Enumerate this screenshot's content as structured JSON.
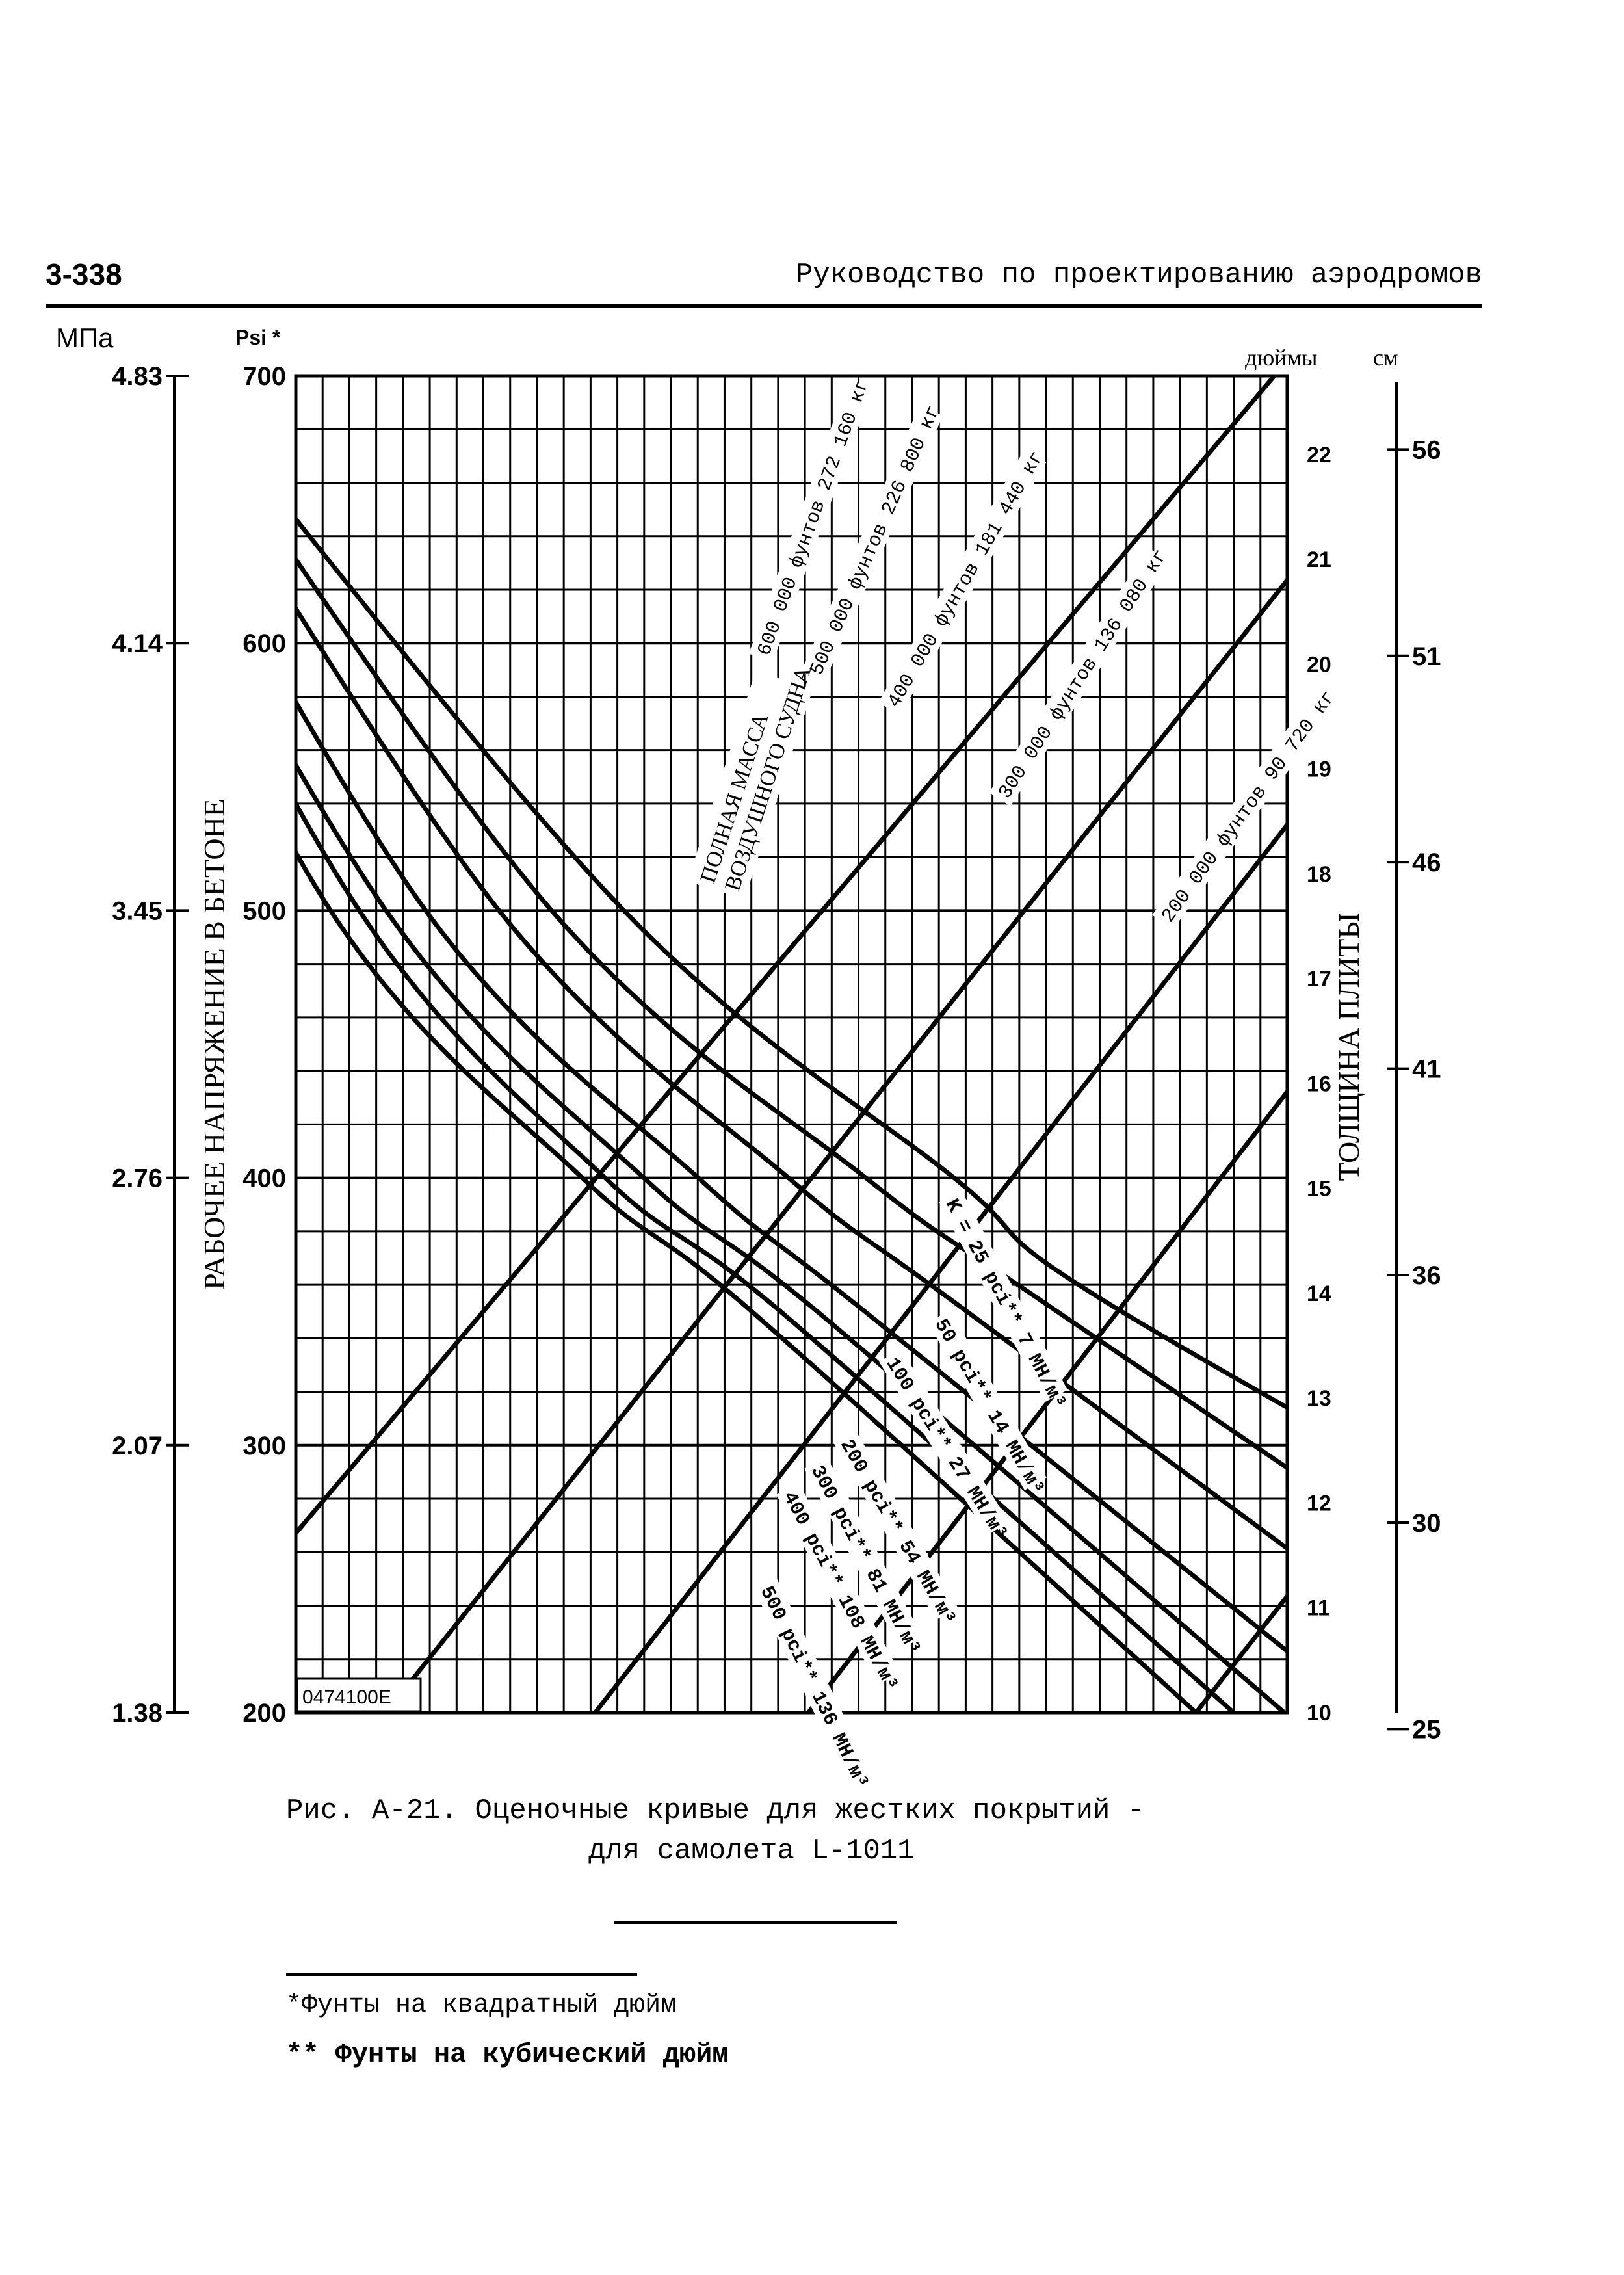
{
  "header": {
    "page_number": "3-338",
    "title": "Руководство по проектированию аэродромов"
  },
  "caption": {
    "line1": "Рис. А-21.  Оценочные кривые для жестких покрытий -",
    "line2": "для самолета L-1011"
  },
  "footnotes": [
    "*Фунты на квадратный дюйм",
    "** Фунты на кубический дюйм"
  ],
  "chart_data": {
    "type": "line",
    "figure_id": "0474100E",
    "left_axis_mpa": {
      "label": "МПа",
      "ticks": [
        {
          "value": 200,
          "label": "1.38"
        },
        {
          "value": 300,
          "label": "2.07"
        },
        {
          "value": 400,
          "label": "2.76"
        },
        {
          "value": 500,
          "label": "3.45"
        },
        {
          "value": 600,
          "label": "4.14"
        },
        {
          "value": 700,
          "label": "4.83"
        }
      ]
    },
    "left_axis_psi": {
      "label": "Psi *",
      "title": "РАБОЧЕЕ НАПРЯЖЕНИЕ В БЕТОНЕ",
      "range": [
        200,
        700
      ],
      "ticks": [
        "200",
        "300",
        "400",
        "500",
        "600",
        "700"
      ]
    },
    "right_axis_inches": {
      "label": "дюймы",
      "title": "ТОЛЩИНА ПЛИТЫ",
      "range": [
        10,
        22.75
      ],
      "ticks": [
        "10",
        "11",
        "12",
        "13",
        "14",
        "15",
        "16",
        "17",
        "18",
        "19",
        "20",
        "21",
        "22"
      ]
    },
    "right_axis_cm": {
      "label": "см",
      "ticks": [
        {
          "value": 25,
          "label": "25"
        },
        {
          "value": 30,
          "label": "30"
        },
        {
          "value": 36,
          "label": "36"
        },
        {
          "value": 41,
          "label": "41"
        },
        {
          "value": 46,
          "label": "46"
        },
        {
          "value": 51,
          "label": "51"
        },
        {
          "value": 56,
          "label": "56"
        }
      ]
    },
    "grid": true,
    "mass_group_label": [
      "ПОЛНАЯ МАССА",
      "ВОЗДУШНОГО СУДНА"
    ],
    "mass_series": [
      {
        "name": "600 000 фунтов  272 160 кг",
        "x": [
          -15.3,
          98.7
        ],
        "y": [
          200,
          700
        ]
      },
      {
        "name": "500 000 фунтов  226 800 кг",
        "x": [
          9.1,
          116.4
        ],
        "y": [
          200,
          700
        ]
      },
      {
        "name": "400 000 фунтов  181 440 кг",
        "x": [
          30.2,
          135.3
        ],
        "y": [
          200,
          700
        ]
      },
      {
        "name": "300 000 фунтов  136 080 кг",
        "x": [
          51.7,
          155.7
        ],
        "y": [
          200,
          700
        ]
      },
      {
        "name": "200 000 фунтов  90 720 кг",
        "x": [
          90.8,
          175.3
        ],
        "y": [
          200,
          600
        ]
      }
    ],
    "k_series": [
      {
        "name": "K = 25 pci** 7 МН/м³",
        "x": [
          -11.6,
          33.1,
          66.4,
          83.3,
          155.2
        ],
        "y": [
          700,
          500,
          400,
          350,
          200
        ]
      },
      {
        "name": "50 pci** 14 МН/м³",
        "x": [
          -12.6,
          25.8,
          57.5,
          76.8,
          136.4
        ],
        "y": [
          700,
          500,
          400,
          350,
          200
        ]
      },
      {
        "name": "100 pci** 27 МН/м³",
        "x": [
          -14.6,
          20.5,
          49.7,
          67.7,
          122.4
        ],
        "y": [
          700,
          500,
          400,
          350,
          200
        ]
      },
      {
        "name": "200 pci** 54 МН/м³",
        "x": [
          -18.3,
          13.1,
          40.6,
          57.4,
          107.7
        ],
        "y": [
          700,
          500,
          400,
          350,
          200
        ]
      },
      {
        "name": "300 pci** 81 МН/м³",
        "x": [
          -21.5,
          9.1,
          35.1,
          52.6,
          99.7
        ],
        "y": [
          700,
          500,
          400,
          350,
          200
        ]
      },
      {
        "name": "400 pci** 108 МН/м³",
        "x": [
          -22.2,
          6.4,
          31.2,
          48.9,
          94.6
        ],
        "y": [
          700,
          500,
          400,
          350,
          200
        ]
      },
      {
        "name": "500 pci** 136 МН/м³",
        "x": [
          -23.6,
          3.5,
          28.9,
          46.0,
          90.8
        ],
        "y": [
          700,
          500,
          400,
          350,
          200
        ]
      }
    ]
  }
}
